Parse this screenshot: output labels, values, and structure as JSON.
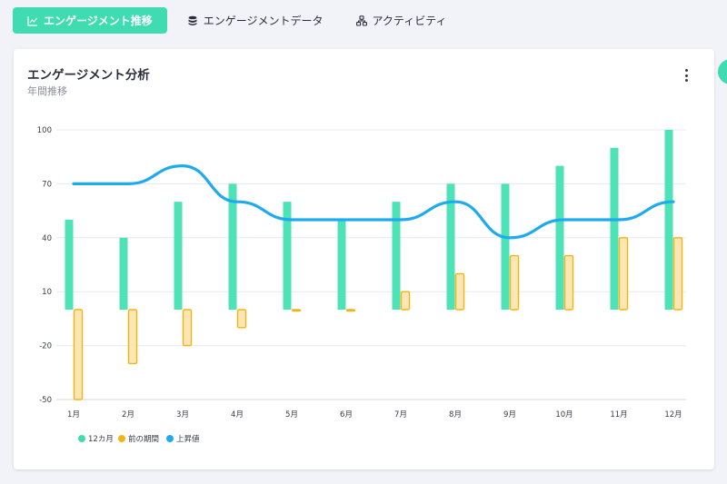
{
  "tabs": [
    {
      "label": "エンゲージメント推移",
      "icon": "line-chart-icon",
      "active": true
    },
    {
      "label": "エンゲージメントデータ",
      "icon": "database-icon",
      "active": false
    },
    {
      "label": "アクティビティ",
      "icon": "network-icon",
      "active": false
    }
  ],
  "card": {
    "title": "エンゲージメント分析",
    "subtitle": "年間推移",
    "menu_icon": "more-vertical-icon"
  },
  "colors": {
    "accent": "#3fdcb1",
    "bar_primary": "#4de3b7",
    "bar_secondary_fill": "#fbe7b2",
    "bar_secondary_stroke": "#f2b417",
    "line": "#1eaaf1",
    "grid": "#e7e8ee"
  },
  "chart_data": {
    "type": "bar",
    "title": "",
    "xlabel": "",
    "ylabel": "",
    "categories": [
      "1月",
      "2月",
      "3月",
      "4月",
      "5月",
      "6月",
      "7月",
      "8月",
      "9月",
      "10月",
      "11月",
      "12月"
    ],
    "yticks": [
      100,
      70,
      40,
      10,
      -20,
      -50
    ],
    "ylim": [
      -50,
      100
    ],
    "grid": true,
    "legend_position": "bottom-left",
    "series": [
      {
        "name": "12カ月",
        "kind": "bar",
        "values": [
          50,
          40,
          60,
          70,
          60,
          50,
          60,
          70,
          70,
          80,
          90,
          100
        ]
      },
      {
        "name": "前の期間",
        "kind": "bar",
        "values": [
          -50,
          -30,
          -20,
          -10,
          0,
          0,
          10,
          20,
          30,
          30,
          40,
          40
        ]
      },
      {
        "name": "上昇値",
        "kind": "line",
        "values": [
          70,
          70,
          80,
          60,
          50,
          50,
          50,
          60,
          40,
          50,
          50,
          60
        ]
      }
    ]
  }
}
